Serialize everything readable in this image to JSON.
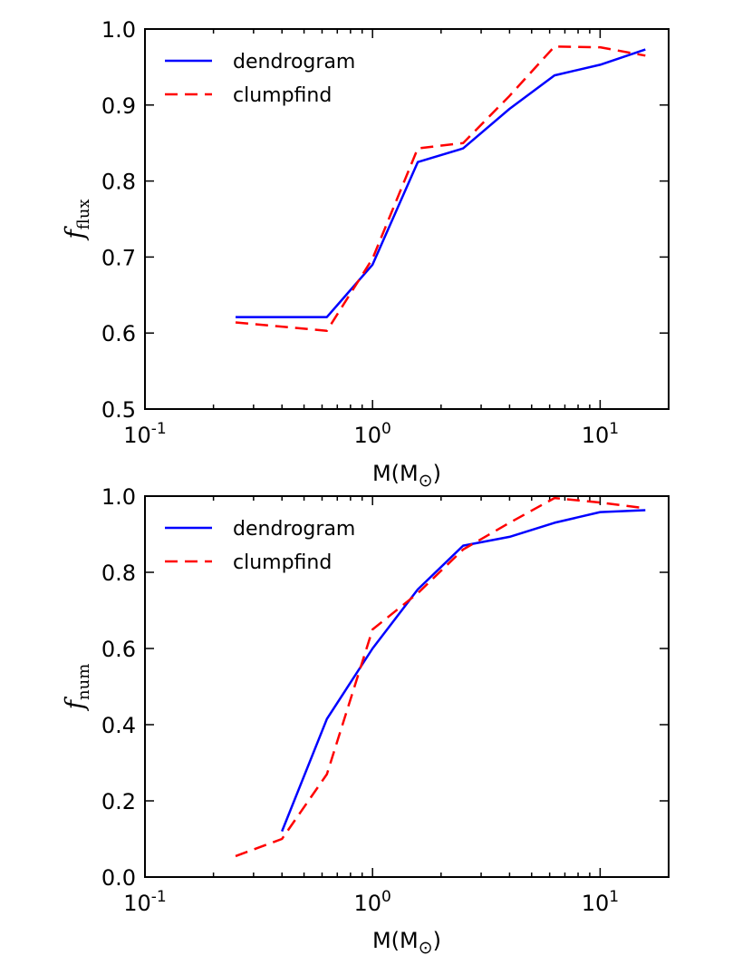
{
  "chart_data": [
    {
      "type": "line",
      "xscale": "log",
      "xlim": [
        0.1,
        20
      ],
      "ylim": [
        0.5,
        1.0
      ],
      "xlabel": "M(M",
      "xlabel_sub": "⊙",
      "ylabel": "f",
      "ylabel_sub": "flux",
      "xticks": [
        {
          "value": 0.1,
          "base": "10",
          "exp": "-1"
        },
        {
          "value": 1,
          "base": "10",
          "exp": "0"
        },
        {
          "value": 10,
          "base": "10",
          "exp": "1"
        }
      ],
      "yticks": [
        0.5,
        0.6,
        0.7,
        0.8,
        0.9,
        1.0
      ],
      "ytick_labels": [
        "0.5",
        "0.6",
        "0.7",
        "0.8",
        "0.9",
        "1.0"
      ],
      "legend_position": "top-left",
      "series": [
        {
          "name": "dendrogram",
          "color": "#0000ff",
          "style": "solid",
          "x": [
            0.25,
            0.63,
            1.0,
            1.58,
            2.5,
            4.0,
            6.3,
            10.0,
            15.8
          ],
          "y": [
            0.621,
            0.621,
            0.69,
            0.825,
            0.843,
            0.895,
            0.939,
            0.953,
            0.973
          ]
        },
        {
          "name": "clumpfind",
          "color": "#ff0000",
          "style": "dashed",
          "x": [
            0.25,
            0.63,
            1.0,
            1.58,
            2.5,
            4.0,
            6.3,
            10.0,
            15.8
          ],
          "y": [
            0.614,
            0.603,
            0.698,
            0.843,
            0.85,
            0.912,
            0.977,
            0.976,
            0.965
          ]
        }
      ]
    },
    {
      "type": "line",
      "xscale": "log",
      "xlim": [
        0.1,
        20
      ],
      "ylim": [
        0.0,
        1.0
      ],
      "xlabel": "M(M",
      "xlabel_sub": "⊙",
      "ylabel": "f",
      "ylabel_sub": "num",
      "xticks": [
        {
          "value": 0.1,
          "base": "10",
          "exp": "-1"
        },
        {
          "value": 1,
          "base": "10",
          "exp": "0"
        },
        {
          "value": 10,
          "base": "10",
          "exp": "1"
        }
      ],
      "yticks": [
        0.0,
        0.2,
        0.4,
        0.6,
        0.8,
        1.0
      ],
      "ytick_labels": [
        "0.0",
        "0.2",
        "0.4",
        "0.6",
        "0.8",
        "1.0"
      ],
      "legend_position": "top-left",
      "series": [
        {
          "name": "dendrogram",
          "color": "#0000ff",
          "style": "solid",
          "x": [
            0.4,
            0.63,
            1.0,
            1.58,
            2.5,
            4.0,
            6.3,
            10.0,
            15.8
          ],
          "y": [
            0.12,
            0.415,
            0.6,
            0.755,
            0.87,
            0.893,
            0.93,
            0.958,
            0.963
          ]
        },
        {
          "name": "clumpfind",
          "color": "#ff0000",
          "style": "dashed",
          "x": [
            0.25,
            0.4,
            0.63,
            1.0,
            1.58,
            2.5,
            4.0,
            6.3,
            10.0,
            15.8
          ],
          "y": [
            0.055,
            0.1,
            0.27,
            0.65,
            0.745,
            0.86,
            0.93,
            0.995,
            0.983,
            0.968
          ]
        }
      ]
    }
  ]
}
